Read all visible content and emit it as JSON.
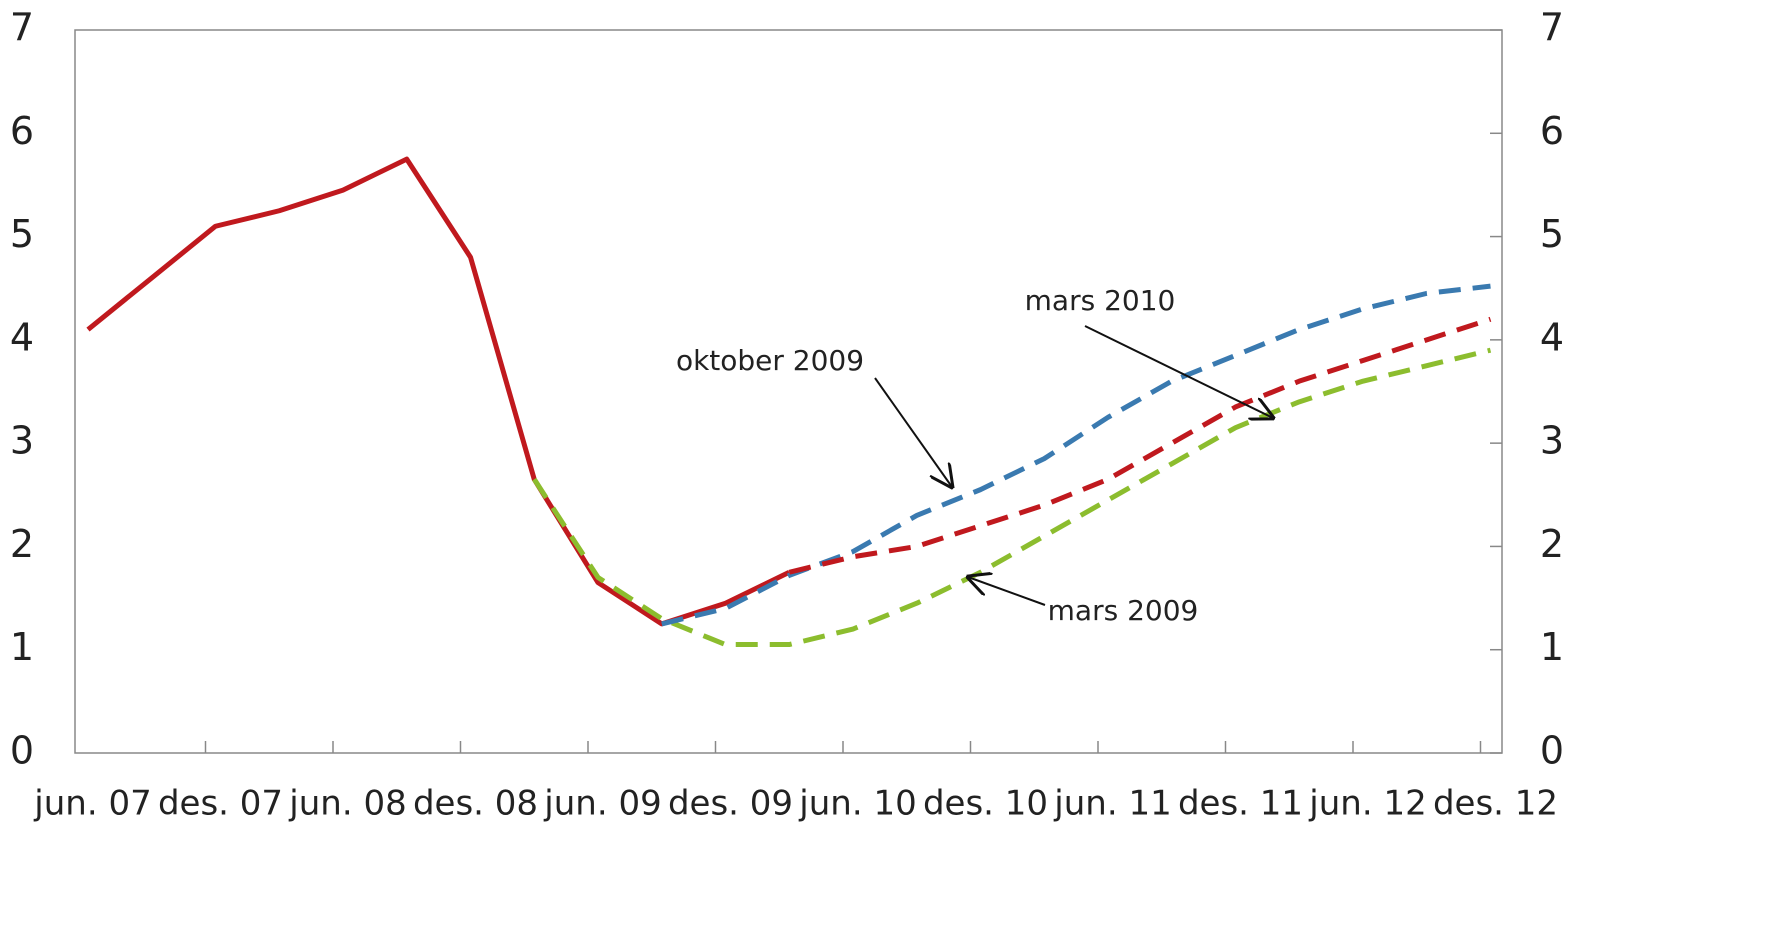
{
  "chart_data": {
    "type": "line",
    "categories": [
      "jun. 07",
      null,
      "des. 07",
      null,
      "jun. 08",
      null,
      "des. 08",
      null,
      "jun. 09",
      null,
      "des. 09",
      null,
      "jun. 10",
      null,
      "des. 10",
      null,
      "jun. 11",
      null,
      "des. 11",
      null,
      "jun. 12",
      null,
      "des. 12"
    ],
    "series": [
      {
        "color": "#c0191e",
        "dash": false,
        "values": [
          4.1,
          4.6,
          5.1,
          5.25,
          5.45,
          5.75,
          4.8,
          2.65,
          1.65,
          1.25,
          1.45,
          1.75,
          null,
          null,
          null,
          null,
          null,
          null,
          null,
          null,
          null,
          null,
          null
        ]
      },
      {
        "name": "mars 2009",
        "color": "#8cbd2e",
        "dash": true,
        "values": [
          null,
          null,
          null,
          null,
          null,
          null,
          null,
          2.65,
          1.7,
          1.3,
          1.05,
          1.05,
          1.2,
          1.45,
          1.75,
          2.1,
          2.45,
          2.8,
          3.15,
          3.4,
          3.6,
          3.75,
          3.9
        ]
      },
      {
        "name": "oktober  2009",
        "color": "#3a7ab0",
        "dash": true,
        "values": [
          null,
          null,
          null,
          null,
          null,
          null,
          null,
          null,
          null,
          1.25,
          1.4,
          1.72,
          1.95,
          2.3,
          2.55,
          2.85,
          3.25,
          3.6,
          3.85,
          4.1,
          4.3,
          4.45,
          4.52
        ]
      },
      {
        "name": "mars 2010",
        "color": "#c0191e",
        "dash": true,
        "values": [
          null,
          null,
          null,
          null,
          null,
          null,
          null,
          null,
          null,
          null,
          null,
          1.75,
          1.9,
          2.0,
          2.2,
          2.4,
          2.65,
          3.0,
          3.35,
          3.6,
          3.8,
          4.0,
          4.2
        ]
      }
    ],
    "ylim": [
      0,
      7
    ],
    "yticks": [
      0,
      1,
      2,
      3,
      4,
      5,
      6,
      7
    ],
    "y2lim": [
      0,
      7
    ],
    "y2ticks": [
      0,
      1,
      2,
      3,
      4,
      5,
      6,
      7
    ]
  }
}
